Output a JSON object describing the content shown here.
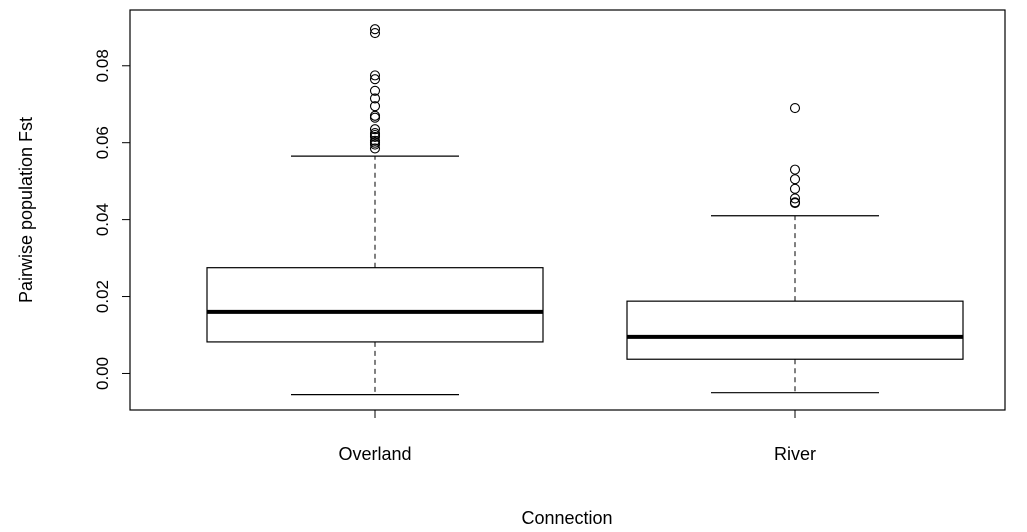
{
  "chart_data": {
    "type": "box",
    "xlabel": "Connection",
    "ylabel": "Pairwise population Fst",
    "ylim": [
      -0.0095,
      0.0945
    ],
    "yticks": [
      0.0,
      0.02,
      0.04,
      0.06,
      0.08
    ],
    "ytick_labels": [
      "0.00",
      "0.02",
      "0.04",
      "0.06",
      "0.08"
    ],
    "grid": false,
    "categories": [
      "Overland",
      "River"
    ],
    "boxes": [
      {
        "name": "Overland",
        "whisker_low": -0.0055,
        "q1": 0.0082,
        "median": 0.016,
        "q3": 0.0275,
        "whisker_high": 0.0565,
        "outliers": [
          0.0885,
          0.0895,
          0.0775,
          0.0765,
          0.0735,
          0.0715,
          0.0695,
          0.067,
          0.0665,
          0.0635,
          0.0625,
          0.062,
          0.0615,
          0.0605,
          0.06,
          0.0595,
          0.0585
        ]
      },
      {
        "name": "River",
        "whisker_low": -0.005,
        "q1": 0.0037,
        "median": 0.0095,
        "q3": 0.0188,
        "whisker_high": 0.041,
        "outliers": [
          0.069,
          0.053,
          0.0505,
          0.048,
          0.0455,
          0.0445,
          0.0443
        ]
      }
    ],
    "colors": {
      "stroke": "#000000",
      "fill": "#ffffff"
    }
  }
}
